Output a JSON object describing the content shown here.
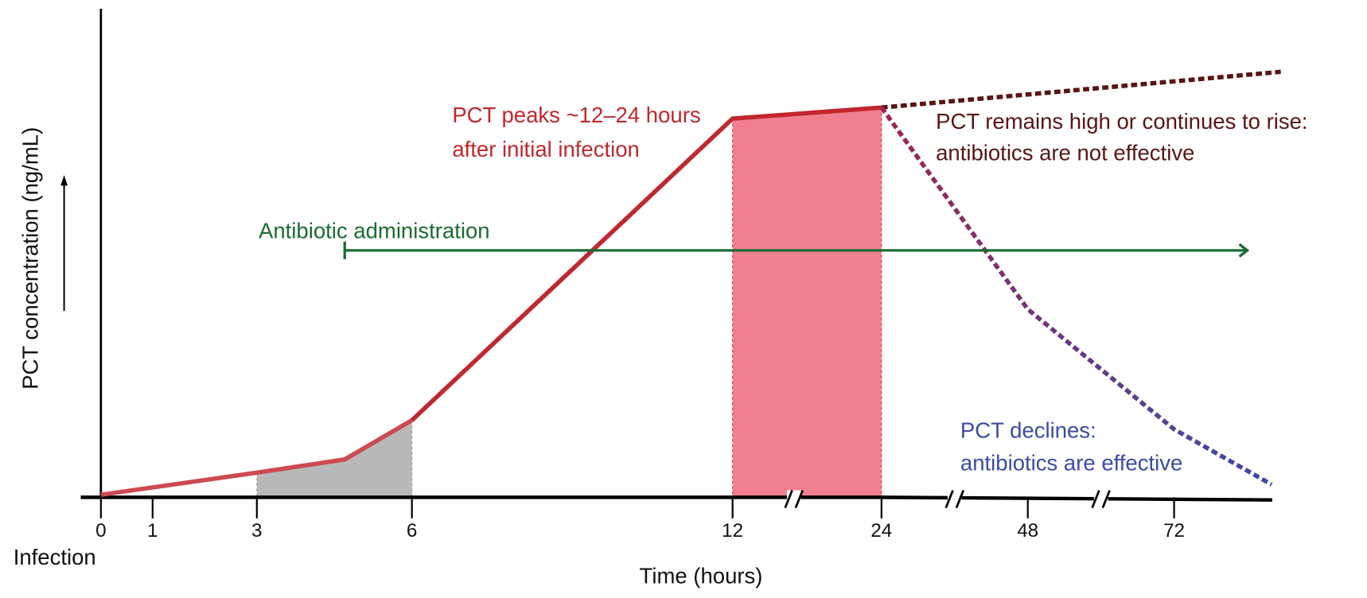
{
  "chart_data": {
    "type": "line",
    "title": "",
    "xlabel": "Time (hours)",
    "ylabel": "PCT concentration (ng/mL)",
    "x_origin_label": "Infection",
    "x_ticks": [
      0,
      1,
      3,
      6,
      12,
      24,
      48,
      72
    ],
    "x_tick_labels": [
      "0",
      "1",
      "3",
      "6",
      "12",
      "24",
      "48",
      "72"
    ],
    "x_axis_breaks_between": [
      [
        12,
        24
      ],
      [
        24,
        48
      ],
      [
        48,
        72
      ]
    ],
    "ylim": [
      0,
      100
    ],
    "y_units": "relative concentration (estimated, unlabeled axis)",
    "series": [
      {
        "name": "PCT rise",
        "style": "solid",
        "color": "#c0282e",
        "x": [
          0,
          3,
          4.7,
          6,
          12,
          24
        ],
        "y": [
          0.6,
          5.8,
          8.9,
          18.1,
          89,
          91.6
        ]
      },
      {
        "name": "Antibiotics not effective",
        "style": "dashed",
        "color": "#5a1212",
        "x": [
          24,
          89.5
        ],
        "y": [
          91.6,
          100
        ]
      },
      {
        "name": "Antibiotics effective",
        "style": "dashed",
        "color_start": "#a3214f",
        "color_end": "#3b4aa8",
        "x": [
          24,
          48,
          72,
          88
        ],
        "y": [
          91.6,
          44.2,
          16,
          3
        ]
      }
    ],
    "shaded_regions": [
      {
        "name": "early rise",
        "x": [
          3,
          6
        ],
        "color": "#b8b8b8"
      },
      {
        "name": "peak window",
        "x": [
          12,
          24
        ],
        "color": "#f27f8f"
      }
    ],
    "antibiotic_interval": {
      "label": "Antibiotic administration",
      "start": 4.7,
      "end": 84,
      "color": "#1a6b35"
    },
    "annotations": [
      {
        "lines": [
          "PCT peaks ~12–24 hours",
          "after initial infection"
        ],
        "color": "#c0282e"
      },
      {
        "lines": [
          "PCT remains high or continues to rise:",
          "antibiotics are not effective"
        ],
        "color": "#5a1515"
      },
      {
        "lines": [
          "PCT declines:",
          "antibiotics are effective"
        ],
        "color": "#3b4aa8"
      }
    ]
  }
}
